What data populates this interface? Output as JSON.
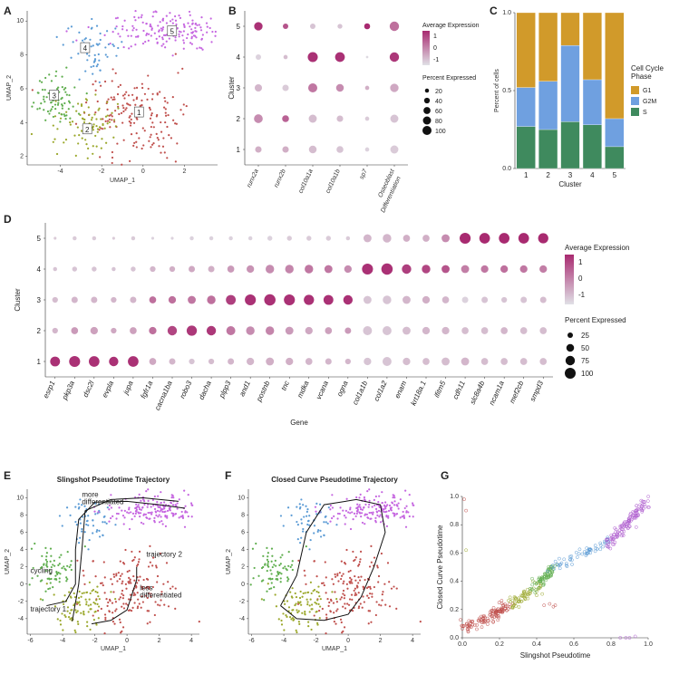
{
  "panel_letters": [
    "A",
    "B",
    "C",
    "D",
    "E",
    "F",
    "G"
  ],
  "colors": {
    "c1": "#c0504d",
    "c2": "#9ba82c",
    "c3": "#5fae4e",
    "c4": "#5b9bd5",
    "c5": "#c565e0",
    "c6": "#b05fd0"
  },
  "chart_data": [
    {
      "id": "A",
      "type": "scatter",
      "xlabel": "UMAP_1",
      "ylabel": "UMAP_2",
      "xticks": [
        "-4",
        "-2",
        "0",
        "2"
      ],
      "yticks": [
        "2",
        "4",
        "6",
        "8",
        "10"
      ],
      "xlim": [
        -5.6,
        3.6
      ],
      "ylim": [
        1.5,
        10.6
      ],
      "clusters": [
        {
          "name": "1",
          "cx": -0.3,
          "cy": 4.3,
          "sx": 1.2,
          "sy": 1.3,
          "n": 170
        },
        {
          "name": "2",
          "cx": -2.8,
          "cy": 3.7,
          "sx": 0.9,
          "sy": 0.8,
          "n": 90
        },
        {
          "name": "3",
          "cx": -4.3,
          "cy": 5.5,
          "sx": 0.55,
          "sy": 0.7,
          "n": 80
        },
        {
          "name": "4",
          "cx": -2.4,
          "cy": 8.3,
          "sx": 0.7,
          "sy": 0.8,
          "n": 55
        },
        {
          "name": "5",
          "cx": 1.2,
          "cy": 9.5,
          "sx": 1.5,
          "sy": 0.6,
          "n": 180
        }
      ],
      "labels": [
        {
          "t": "1",
          "x": -0.2,
          "y": 4.6
        },
        {
          "t": "2",
          "x": -2.7,
          "y": 3.6
        },
        {
          "t": "3",
          "x": -4.3,
          "y": 5.6
        },
        {
          "t": "4",
          "x": -2.8,
          "y": 8.4
        },
        {
          "t": "5",
          "x": 1.4,
          "y": 9.4
        }
      ]
    },
    {
      "id": "B",
      "type": "dot",
      "ylabel": "Cluster",
      "genes": [
        "runx2a",
        "runx2b",
        "col10a1a",
        "col10a1b",
        "sp7",
        "Osteoblast\nDifferentiation"
      ],
      "clusters": [
        "1",
        "2",
        "3",
        "4",
        "5"
      ],
      "pct": [
        [
          35,
          35,
          50,
          40,
          15,
          55
        ],
        [
          65,
          40,
          55,
          35,
          15,
          55
        ],
        [
          45,
          35,
          70,
          50,
          15,
          60
        ],
        [
          25,
          15,
          85,
          80,
          5,
          75
        ],
        [
          60,
          25,
          25,
          20,
          30,
          75
        ]
      ],
      "avg": [
        [
          -0.3,
          -0.3,
          -0.5,
          -0.6,
          -0.8,
          -0.7
        ],
        [
          0.2,
          0.8,
          -0.5,
          -0.5,
          -0.7,
          -0.6
        ],
        [
          -0.4,
          -0.7,
          0.5,
          0.2,
          -0.3,
          -0.2
        ],
        [
          -0.8,
          -0.5,
          1.5,
          1.5,
          -0.9,
          1.4
        ],
        [
          1.5,
          1.0,
          -0.6,
          -0.6,
          1.6,
          0.6
        ]
      ],
      "legend_avg_title": "Average Expression",
      "legend_avg_ticks": [
        "1",
        "0",
        "-1"
      ],
      "legend_pct_title": "Percent Expressed",
      "legend_pct_values": [
        "20",
        "40",
        "60",
        "80",
        "100"
      ]
    },
    {
      "id": "C",
      "type": "bar",
      "xlabel": "Cluster",
      "ylabel": "Percent of cells",
      "categories": [
        "1",
        "2",
        "3",
        "4",
        "5"
      ],
      "series": [
        {
          "name": "S",
          "values": [
            0.27,
            0.25,
            0.3,
            0.28,
            0.14
          ]
        },
        {
          "name": "G2M",
          "values": [
            0.25,
            0.31,
            0.49,
            0.29,
            0.18
          ]
        },
        {
          "name": "G1",
          "values": [
            0.48,
            0.44,
            0.21,
            0.43,
            0.68
          ]
        }
      ],
      "yticks": [
        "0.0",
        "0.5",
        "1.0"
      ],
      "legend_title": "Cell Cycle\nPhase",
      "legend": [
        "G1",
        "G2M",
        "S"
      ],
      "series_colors": {
        "G1": "#d19a2a",
        "G2M": "#6fa0e0",
        "S": "#3f8a5e"
      }
    },
    {
      "id": "D",
      "type": "dot",
      "xlabel": "Gene",
      "ylabel": "Cluster",
      "genes": [
        "esrp1",
        "pkp3a",
        "dsc2l",
        "evpla",
        "jupa",
        "fgfr1a",
        "cacna1ba",
        "robo3",
        "dacha",
        "plpp3",
        "and1",
        "postnb",
        "tnc",
        "mdka",
        "vcana",
        "ogna",
        "col1a1b",
        "col1a2",
        "enam",
        "krt18a.1",
        "ifitm5",
        "cdh11",
        "slc8a4b",
        "ncam1a",
        "mef2cb",
        "smpd3"
      ],
      "clusters": [
        "1",
        "2",
        "3",
        "4",
        "5"
      ],
      "pct": [
        [
          60,
          75,
          70,
          55,
          70,
          30,
          25,
          20,
          20,
          25,
          35,
          40,
          35,
          30,
          25,
          20,
          35,
          50,
          35,
          30,
          40,
          40,
          30,
          30,
          30,
          30
        ],
        [
          20,
          30,
          35,
          20,
          30,
          35,
          55,
          65,
          55,
          50,
          45,
          45,
          40,
          35,
          30,
          25,
          50,
          50,
          40,
          35,
          35,
          30,
          30,
          30,
          30,
          30
        ],
        [
          20,
          25,
          25,
          20,
          25,
          30,
          35,
          40,
          45,
          60,
          75,
          80,
          75,
          65,
          60,
          55,
          40,
          45,
          40,
          35,
          30,
          25,
          25,
          20,
          25,
          25
        ],
        [
          10,
          15,
          15,
          10,
          15,
          20,
          20,
          25,
          25,
          30,
          35,
          45,
          45,
          45,
          40,
          35,
          75,
          80,
          55,
          45,
          40,
          40,
          35,
          35,
          35,
          35
        ],
        [
          5,
          10,
          10,
          5,
          10,
          5,
          5,
          10,
          10,
          10,
          10,
          15,
          15,
          15,
          15,
          10,
          40,
          45,
          30,
          30,
          40,
          75,
          70,
          70,
          70,
          65
        ]
      ],
      "avg": [
        [
          1.5,
          1.5,
          1.5,
          1.5,
          1.5,
          -0.2,
          -0.4,
          -0.6,
          -0.5,
          -0.4,
          -0.4,
          -0.3,
          -0.3,
          -0.4,
          -0.4,
          -0.4,
          -0.6,
          -0.6,
          -0.5,
          -0.5,
          -0.5,
          -0.4,
          -0.5,
          -0.5,
          -0.5,
          -0.5
        ],
        [
          -0.4,
          0.0,
          -0.1,
          -0.2,
          -0.1,
          0.6,
          1.2,
          1.4,
          1.4,
          0.5,
          0.2,
          0.3,
          0.0,
          -0.2,
          -0.1,
          0.0,
          -0.6,
          -0.6,
          -0.5,
          -0.4,
          -0.4,
          -0.5,
          -0.5,
          -0.4,
          -0.5,
          -0.5
        ],
        [
          -0.5,
          -0.4,
          -0.4,
          -0.4,
          -0.4,
          0.6,
          0.6,
          0.5,
          0.6,
          1.3,
          1.5,
          1.5,
          1.5,
          1.5,
          1.5,
          1.5,
          -0.6,
          -0.6,
          -0.4,
          -0.3,
          -0.4,
          -0.8,
          -0.6,
          -0.6,
          -0.6,
          -0.5
        ],
        [
          -0.6,
          -0.6,
          -0.6,
          -0.6,
          -0.6,
          -0.4,
          -0.3,
          -0.2,
          -0.3,
          0.0,
          0.1,
          0.2,
          0.3,
          0.5,
          0.5,
          0.2,
          1.5,
          1.5,
          1.3,
          1.2,
          1.0,
          0.4,
          0.5,
          0.6,
          0.5,
          0.4
        ],
        [
          -0.7,
          -0.7,
          -0.7,
          -0.7,
          -0.7,
          -0.8,
          -0.8,
          -0.8,
          -0.8,
          -0.8,
          -0.8,
          -0.8,
          -0.7,
          -0.7,
          -0.7,
          -0.7,
          -0.4,
          -0.4,
          -0.3,
          -0.3,
          0.2,
          1.6,
          1.6,
          1.6,
          1.6,
          1.6
        ]
      ],
      "legend_avg_title": "Average Expression",
      "legend_avg_ticks": [
        "1",
        "0",
        "-1"
      ],
      "legend_pct_title": "Percent Expressed",
      "legend_pct_values": [
        "25",
        "50",
        "75",
        "100"
      ]
    },
    {
      "id": "E",
      "type": "scatter",
      "title": "Slingshot Pseudotime Trajectory",
      "xlabel": "UMAP_1",
      "ylabel": "UMAP_2",
      "xticks": [
        "-6",
        "-4",
        "-2",
        "0",
        "2",
        "4"
      ],
      "yticks": [
        "-4",
        "-2",
        "0",
        "2",
        "4",
        "6",
        "8",
        "10"
      ],
      "xlim": [
        -6.2,
        4.5
      ],
      "ylim": [
        -5.8,
        11
      ],
      "annotations": [
        "more\ndifferentiated",
        "cycling",
        "trajectory 2",
        "less\ndifferentiated",
        "trajectory 1"
      ]
    },
    {
      "id": "F",
      "type": "scatter",
      "title": "Closed Curve Pseudotime Trajectory",
      "xlabel": "UMAP_1",
      "ylabel": "UMAP_2",
      "xticks": [
        "-6",
        "-4",
        "-2",
        "0",
        "2",
        "4"
      ],
      "yticks": [
        "-4",
        "-2",
        "0",
        "2",
        "4",
        "6",
        "8",
        "10"
      ],
      "xlim": [
        -6.2,
        4.5
      ],
      "ylim": [
        -5.8,
        11
      ]
    },
    {
      "id": "G",
      "type": "scatter",
      "xlabel": "Slingshot Pseudotime",
      "ylabel": "Closed Curve Pseudotime",
      "xticks": [
        "0.0",
        "0.2",
        "0.4",
        "0.6",
        "0.8",
        "1.0"
      ],
      "yticks": [
        "0.0",
        "0.2",
        "0.4",
        "0.6",
        "0.8",
        "1.0"
      ],
      "xlim": [
        0,
        1
      ],
      "ylim": [
        0,
        1
      ]
    }
  ]
}
